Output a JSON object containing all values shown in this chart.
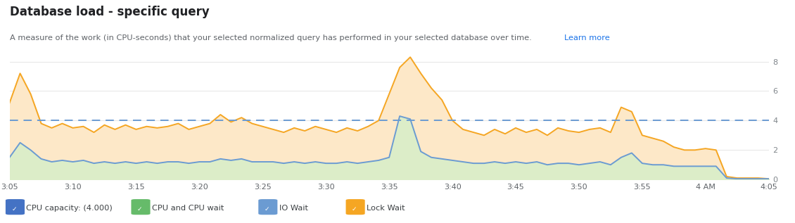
{
  "title": "Database load - specific query",
  "subtitle1": "A measure of the work (in CPU-seconds) that your selected normalized query has performed in your selected database over time. ",
  "subtitle_link": "Learn more",
  "cpu_capacity": 4.0,
  "ylim": [
    0,
    9.0
  ],
  "yticks": [
    0,
    2,
    4,
    6,
    8
  ],
  "background_color": "#ffffff",
  "plot_bg_color": "#ffffff",
  "grid_color": "#e8e8e8",
  "capacity_line_color": "#6b9bd2",
  "lock_wait_color": "#f5a623",
  "lock_wait_fill": "#fde8c8",
  "io_wait_color": "#6b9bd2",
  "io_wait_fill": "#dcedc8",
  "x_labels": [
    "3:05",
    "3:10",
    "3:15",
    "3:20",
    "3:25",
    "3:30",
    "3:35",
    "3:40",
    "3:45",
    "3:50",
    "3:55",
    "4 AM",
    "4:05"
  ],
  "lock_wait_values": [
    5.2,
    7.2,
    5.8,
    3.8,
    3.5,
    3.8,
    3.5,
    3.6,
    3.2,
    3.7,
    3.4,
    3.7,
    3.4,
    3.6,
    3.5,
    3.6,
    3.8,
    3.4,
    3.6,
    3.8,
    4.4,
    3.9,
    4.2,
    3.8,
    3.6,
    3.4,
    3.2,
    3.5,
    3.3,
    3.6,
    3.4,
    3.2,
    3.5,
    3.3,
    3.6,
    4.0,
    5.8,
    7.6,
    8.3,
    7.2,
    6.2,
    5.4,
    4.0,
    3.4,
    3.2,
    3.0,
    3.4,
    3.1,
    3.5,
    3.2,
    3.4,
    3.0,
    3.5,
    3.3,
    3.2,
    3.4,
    3.5,
    3.2,
    4.9,
    4.6,
    3.0,
    2.8,
    2.6,
    2.2,
    2.0,
    2.0,
    2.1,
    2.0,
    0.2,
    0.1,
    0.1,
    0.1,
    0.05
  ],
  "io_wait_values": [
    1.5,
    2.5,
    2.0,
    1.4,
    1.2,
    1.3,
    1.2,
    1.3,
    1.1,
    1.2,
    1.1,
    1.2,
    1.1,
    1.2,
    1.1,
    1.2,
    1.2,
    1.1,
    1.2,
    1.2,
    1.4,
    1.3,
    1.4,
    1.2,
    1.2,
    1.2,
    1.1,
    1.2,
    1.1,
    1.2,
    1.1,
    1.1,
    1.2,
    1.1,
    1.2,
    1.3,
    1.5,
    4.3,
    4.1,
    1.9,
    1.5,
    1.4,
    1.3,
    1.2,
    1.1,
    1.1,
    1.2,
    1.1,
    1.2,
    1.1,
    1.2,
    1.0,
    1.1,
    1.1,
    1.0,
    1.1,
    1.2,
    1.0,
    1.5,
    1.8,
    1.1,
    1.0,
    1.0,
    0.9,
    0.9,
    0.9,
    0.9,
    0.9,
    0.1,
    0.05,
    0.05,
    0.05,
    0.05
  ],
  "legend_items": [
    {
      "label": "CPU capacity: (4.000)",
      "color": "#4472c4"
    },
    {
      "label": "CPU and CPU wait",
      "color": "#66bb6a"
    },
    {
      "label": "IO Wait",
      "color": "#6b9bd2"
    },
    {
      "label": "Lock Wait",
      "color": "#f5a623"
    }
  ]
}
